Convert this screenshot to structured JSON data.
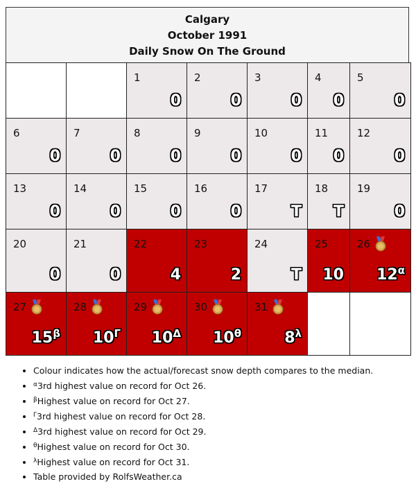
{
  "header": {
    "city": "Calgary",
    "month": "October 1991",
    "subtitle": "Daily Snow On The Ground"
  },
  "colors": {
    "normal": "#ede8e9",
    "above_median": "#c00000",
    "empty": "#ffffff"
  },
  "calendar": {
    "weeks": [
      [
        {
          "empty": true
        },
        {
          "empty": true
        },
        {
          "day": "1",
          "value": "0",
          "style": "normal"
        },
        {
          "day": "2",
          "value": "0",
          "style": "normal"
        },
        {
          "day": "3",
          "value": "0",
          "style": "normal"
        },
        {
          "day": "4",
          "value": "0",
          "style": "normal"
        },
        {
          "day": "5",
          "value": "0",
          "style": "normal"
        }
      ],
      [
        {
          "day": "6",
          "value": "0",
          "style": "normal"
        },
        {
          "day": "7",
          "value": "0",
          "style": "normal"
        },
        {
          "day": "8",
          "value": "0",
          "style": "normal"
        },
        {
          "day": "9",
          "value": "0",
          "style": "normal"
        },
        {
          "day": "10",
          "value": "0",
          "style": "normal"
        },
        {
          "day": "11",
          "value": "0",
          "style": "normal"
        },
        {
          "day": "12",
          "value": "0",
          "style": "normal"
        }
      ],
      [
        {
          "day": "13",
          "value": "0",
          "style": "normal"
        },
        {
          "day": "14",
          "value": "0",
          "style": "normal"
        },
        {
          "day": "15",
          "value": "0",
          "style": "normal"
        },
        {
          "day": "16",
          "value": "0",
          "style": "normal"
        },
        {
          "day": "17",
          "value": "T",
          "style": "normal"
        },
        {
          "day": "18",
          "value": "T",
          "style": "normal"
        },
        {
          "day": "19",
          "value": "0",
          "style": "normal"
        }
      ],
      [
        {
          "day": "20",
          "value": "0",
          "style": "normal"
        },
        {
          "day": "21",
          "value": "0",
          "style": "normal"
        },
        {
          "day": "22",
          "value": "4",
          "style": "red"
        },
        {
          "day": "23",
          "value": "2",
          "style": "red"
        },
        {
          "day": "24",
          "value": "T",
          "style": "normal"
        },
        {
          "day": "25",
          "value": "10",
          "style": "red"
        },
        {
          "day": "26",
          "value": "12",
          "sup": "α",
          "style": "red",
          "medal": "medal-icon"
        }
      ],
      [
        {
          "day": "27",
          "value": "15",
          "sup": "β",
          "style": "red",
          "medal": "medal-icon"
        },
        {
          "day": "28",
          "value": "10",
          "sup": "Γ",
          "style": "red",
          "medal": "medal-icon"
        },
        {
          "day": "29",
          "value": "10",
          "sup": "Δ",
          "style": "red",
          "medal": "medal-icon"
        },
        {
          "day": "30",
          "value": "10",
          "sup": "θ",
          "style": "red",
          "medal": "medal-icon"
        },
        {
          "day": "31",
          "value": "8",
          "sup": "λ",
          "style": "red",
          "medal": "medal-icon"
        },
        {
          "empty": true
        },
        {
          "empty": true
        }
      ]
    ]
  },
  "notes": [
    {
      "sup": "",
      "text": "Colour indicates how the actual/forecast snow depth compares to the median."
    },
    {
      "sup": "α",
      "text": "3rd highest value on record for Oct 26."
    },
    {
      "sup": "β",
      "text": "Highest value on record for Oct 27."
    },
    {
      "sup": "Γ",
      "text": "3rd highest value on record for Oct 28."
    },
    {
      "sup": "Δ",
      "text": "3rd highest value on record for Oct 29."
    },
    {
      "sup": "θ",
      "text": "Highest value on record for Oct 30."
    },
    {
      "sup": "λ",
      "text": "Highest value on record for Oct 31."
    },
    {
      "sup": "",
      "text": "Table provided by RolfsWeather.ca"
    }
  ]
}
